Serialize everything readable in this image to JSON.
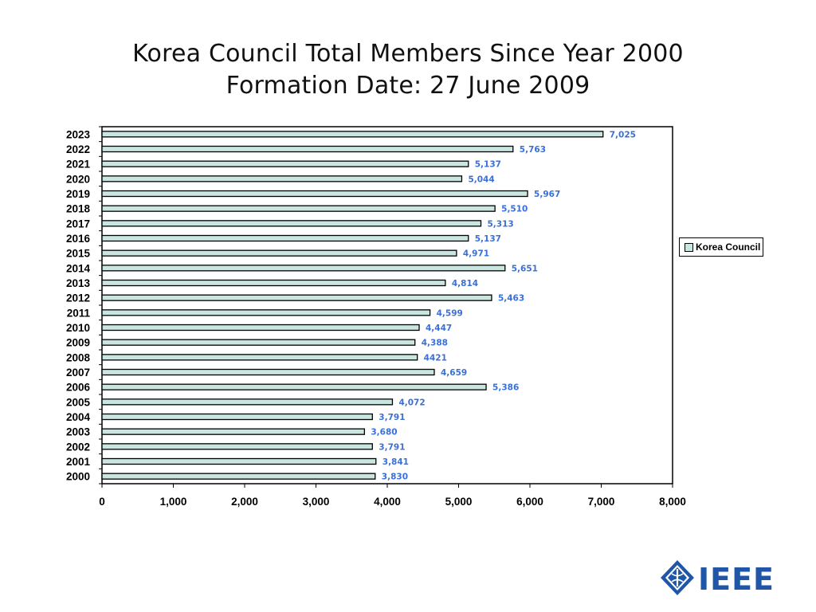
{
  "slide": {
    "title_line1": "Korea Council Total Members Since Year 2000",
    "title_line2": "Formation Date: 27 June 2009",
    "logo_text": "IEEE"
  },
  "legend": {
    "label": "Korea Council"
  },
  "colors": {
    "bar_fill": "#c9e6e1",
    "bar_stroke": "#000000",
    "data_label": "#3a6fd8"
  },
  "chart_data": {
    "type": "bar",
    "orientation": "horizontal",
    "categories": [
      "2023",
      "2022",
      "2021",
      "2020",
      "2019",
      "2018",
      "2017",
      "2016",
      "2015",
      "2014",
      "2013",
      "2012",
      "2011",
      "2010",
      "2009",
      "2008",
      "2007",
      "2006",
      "2005",
      "2004",
      "2003",
      "2002",
      "2001",
      "2000"
    ],
    "series": [
      {
        "name": "Korea Council",
        "values": [
          7025,
          5763,
          5137,
          5044,
          5967,
          5510,
          5313,
          5137,
          4971,
          5651,
          4814,
          5463,
          4599,
          4447,
          4388,
          4421,
          4659,
          5386,
          4072,
          3791,
          3680,
          3791,
          3841,
          3830
        ],
        "labels": [
          "7,025",
          "5,763",
          "5,137",
          "5,044",
          "5,967",
          "5,510",
          "5,313",
          "5,137",
          "4,971",
          "5,651",
          "4,814",
          "5,463",
          "4,599",
          "4,447",
          "4,388",
          "4421",
          "4,659",
          "5,386",
          "4,072",
          "3,791",
          "3,680",
          "3,791",
          "3,841",
          "3,830"
        ]
      }
    ],
    "xlim": [
      0,
      8000
    ],
    "xticks": [
      0,
      1000,
      2000,
      3000,
      4000,
      5000,
      6000,
      7000,
      8000
    ],
    "xtick_labels": [
      "0",
      "1,000",
      "2,000",
      "3,000",
      "4,000",
      "5,000",
      "6,000",
      "7,000",
      "8,000"
    ],
    "grid": false,
    "legend_position": "right"
  }
}
